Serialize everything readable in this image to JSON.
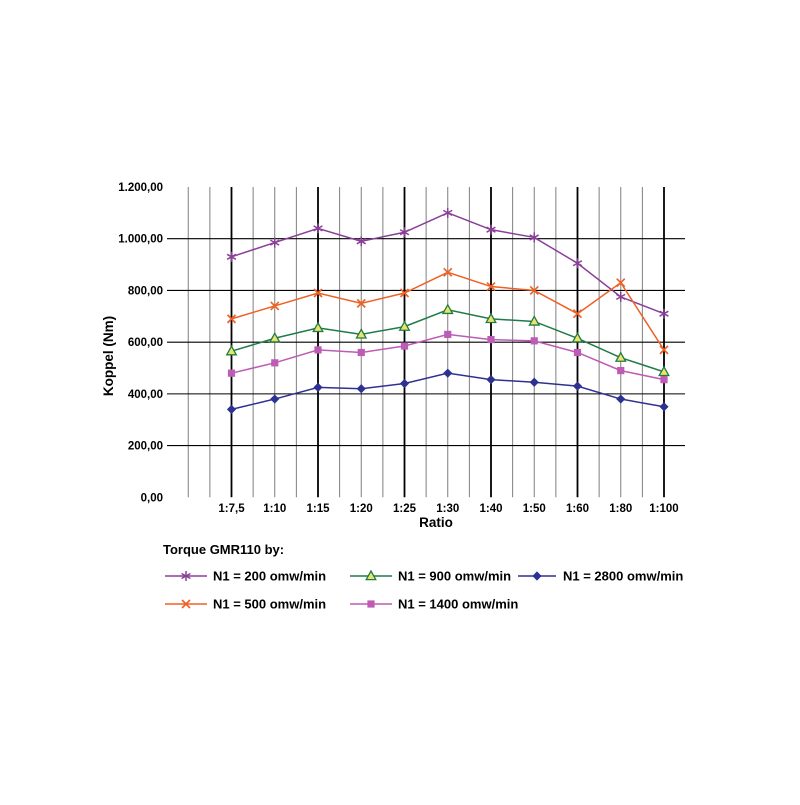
{
  "page": {
    "background": "#ffffff"
  },
  "chart_data": {
    "type": "line",
    "title": "Torque GMR110 by:",
    "xlabel": "Ratio",
    "ylabel": "Koppel (Nm)",
    "categories": [
      "1:7,5",
      "1:10",
      "1:15",
      "1:20",
      "1:25",
      "1:30",
      "1:40",
      "1:50",
      "1:60",
      "1:80",
      "1:100"
    ],
    "ylim": [
      0,
      1200
    ],
    "y_major_step": 200,
    "y_tick_labels": [
      "0,00",
      "200,00",
      "400,00",
      "600,00",
      "800,00",
      "1.000,00",
      "1.200,00"
    ],
    "grid": {
      "horizontal": true,
      "vertical": true,
      "minor_vertical_between_categories": true,
      "horizontal_color": "#000000",
      "minor_vertical_color": "#7f7f7f",
      "major_vertical_color": "#000000",
      "major_vertical_category_indices": [
        0,
        2,
        4,
        6,
        8,
        10
      ]
    },
    "legend": {
      "title": "Torque GMR110 by:",
      "position": "bottom",
      "columns": 3
    },
    "series": [
      {
        "name": "N1 = 200 omw/min",
        "color": "#8A3F98",
        "marker": "star",
        "values": [
          930,
          985,
          1040,
          990,
          1025,
          1100,
          1035,
          1005,
          905,
          775,
          710
        ]
      },
      {
        "name": "N1 = 500 omw/min",
        "color": "#EF6024",
        "marker": "x",
        "values": [
          690,
          740,
          790,
          750,
          790,
          870,
          815,
          800,
          710,
          830,
          570
        ]
      },
      {
        "name": "N1 = 900 omw/min",
        "color": "#1F7C46",
        "marker": "triangle",
        "marker_fill": "#EDE26A",
        "values": [
          565,
          615,
          655,
          630,
          660,
          725,
          690,
          680,
          615,
          540,
          485
        ]
      },
      {
        "name": "N1 = 1400 omw/min",
        "color": "#BE5BB4",
        "marker": "square",
        "values": [
          480,
          520,
          570,
          560,
          585,
          630,
          610,
          605,
          560,
          490,
          455
        ]
      },
      {
        "name": "N1 = 2800 omw/min",
        "color": "#2D3191",
        "marker": "diamond",
        "values": [
          340,
          380,
          425,
          420,
          440,
          480,
          455,
          445,
          430,
          380,
          350
        ]
      }
    ]
  }
}
